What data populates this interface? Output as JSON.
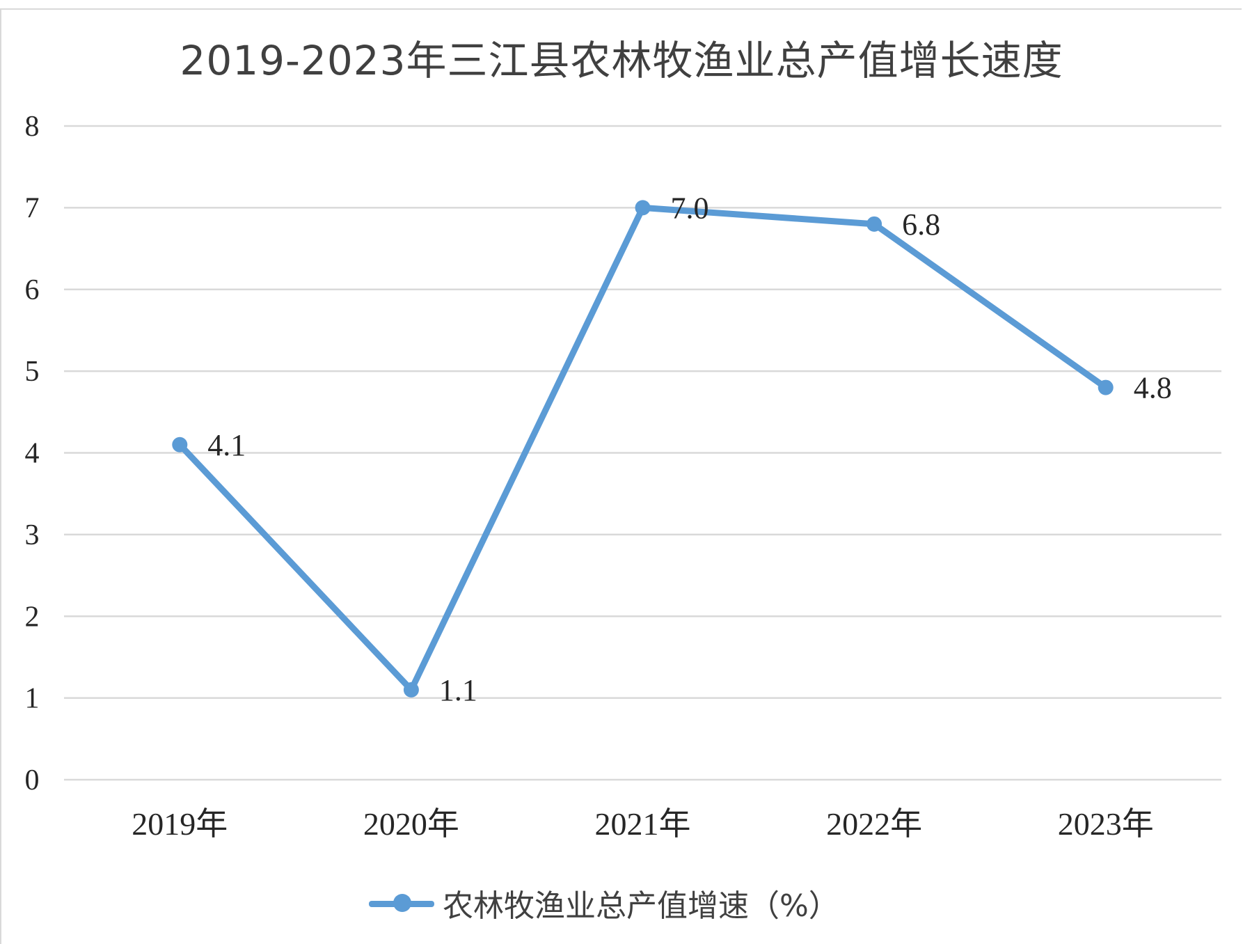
{
  "chart_data": {
    "type": "line",
    "title": "2019-2023年三江县农林牧渔业总产值增长速度",
    "categories": [
      "2019年",
      "2020年",
      "2021年",
      "2022年",
      "2023年"
    ],
    "series": [
      {
        "name": "农林牧渔业总产值增速（%）",
        "values": [
          4.1,
          1.1,
          7.0,
          6.8,
          4.8
        ],
        "labels": [
          "4.1",
          "1.1",
          "7.0",
          "6.8",
          "4.8"
        ],
        "color": "#5b9bd5"
      }
    ],
    "yticks": [
      "0",
      "1",
      "2",
      "3",
      "4",
      "5",
      "6",
      "7",
      "8"
    ],
    "ylim": [
      0,
      8
    ],
    "grid": true,
    "legend_position": "bottom",
    "gridline_color": "#d9d9d9"
  }
}
